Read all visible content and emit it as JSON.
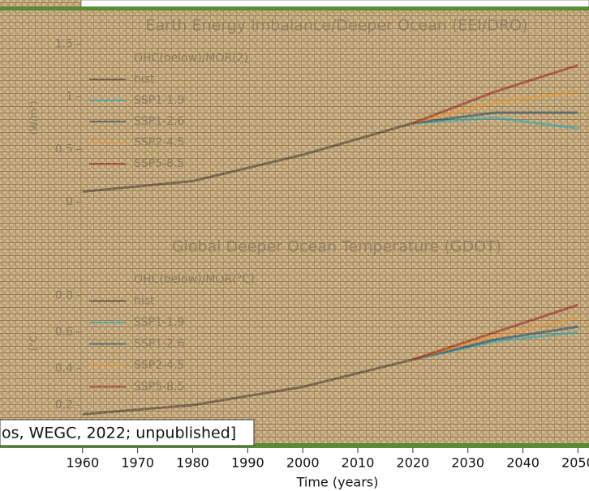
{
  "chart_data": [
    {
      "type": "line",
      "title": "Earth Energy Imbalance/Deeper Ocean (EEI/DRO)",
      "ylabel": "(W/m²)",
      "x": [
        1960,
        1980,
        2000,
        2020,
        2035,
        2050
      ],
      "xlim": [
        1945,
        2052
      ],
      "ylim": [
        -0.25,
        1.85
      ],
      "yticks": [
        0.0,
        0.5,
        1.0,
        1.5
      ],
      "legend_title": "OHC(below)/MOR(2)",
      "series": [
        {
          "name": "hist",
          "color": "#222222",
          "values": [
            0.1,
            0.2,
            0.45,
            0.75,
            null,
            null
          ]
        },
        {
          "name": "SSP1-1.9",
          "color": "#00a9cf",
          "values": [
            null,
            null,
            null,
            0.75,
            0.8,
            0.7
          ]
        },
        {
          "name": "SSP1-2.6",
          "color": "#003466",
          "values": [
            null,
            null,
            null,
            0.75,
            0.85,
            0.85
          ]
        },
        {
          "name": "SSP2-4.5",
          "color": "#f69320",
          "values": [
            null,
            null,
            null,
            0.75,
            0.95,
            1.05
          ]
        },
        {
          "name": "SSP5-8.5",
          "color": "#980002",
          "values": [
            null,
            null,
            null,
            0.75,
            1.05,
            1.3
          ]
        }
      ]
    },
    {
      "type": "line",
      "title": "Global Deeper Ocean Temperature (GDOT)",
      "ylabel": "(°C)",
      "xlabel": "Time (years)",
      "x": [
        1960,
        1980,
        2000,
        2020,
        2035,
        2050
      ],
      "xlim": [
        1945,
        2052
      ],
      "xticks": [
        1960,
        1970,
        1980,
        1990,
        2000,
        2010,
        2020,
        2030,
        2040,
        2050
      ],
      "ylim": [
        0,
        1.1
      ],
      "yticks": [
        0.2,
        0.4,
        0.6,
        0.8
      ],
      "legend_title": "OHC(below)/MOR(°C)",
      "series": [
        {
          "name": "hist",
          "color": "#222222",
          "values": [
            0.15,
            0.2,
            0.3,
            0.45,
            null,
            null
          ]
        },
        {
          "name": "SSP1-1.9",
          "color": "#00a9cf",
          "values": [
            null,
            null,
            null,
            0.45,
            0.55,
            0.6
          ]
        },
        {
          "name": "SSP1-2.6",
          "color": "#003466",
          "values": [
            null,
            null,
            null,
            0.45,
            0.56,
            0.63
          ]
        },
        {
          "name": "SSP2-4.5",
          "color": "#f69320",
          "values": [
            null,
            null,
            null,
            0.45,
            0.58,
            0.68
          ]
        },
        {
          "name": "SSP5-8.5",
          "color": "#980002",
          "values": [
            null,
            null,
            null,
            0.45,
            0.6,
            0.75
          ]
        }
      ]
    }
  ],
  "caption": "os, WEGC, 2022; unpublished]"
}
